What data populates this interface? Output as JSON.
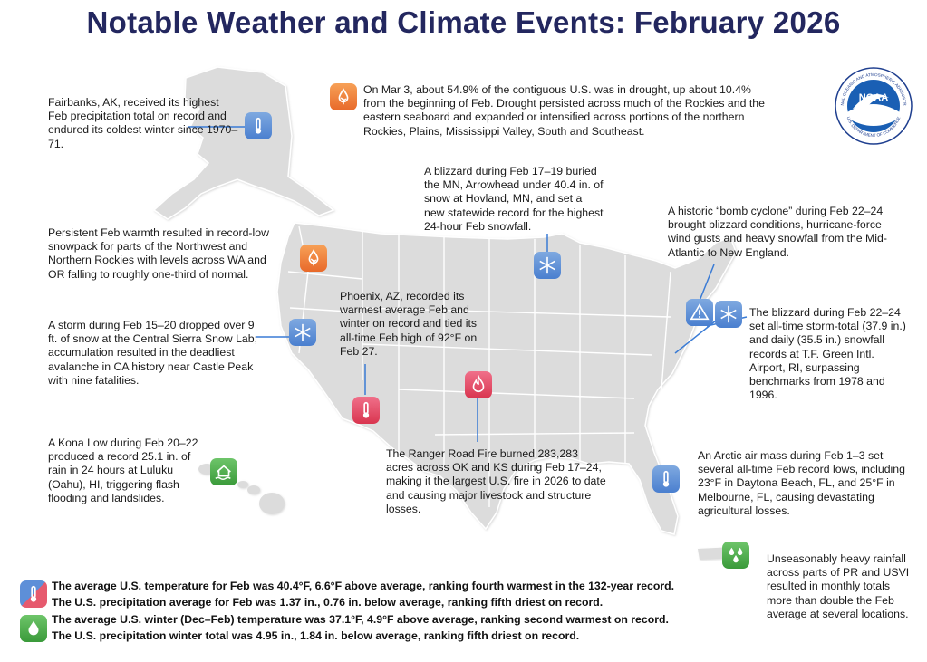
{
  "title": "Notable Weather and Climate Events: February 2026",
  "logo": {
    "text": "NOAA",
    "ring_top": "NATIONAL OCEANIC AND ATMOSPHERIC ADMINISTRATION",
    "ring_bottom": "U.S. DEPARTMENT OF COMMERCE"
  },
  "events": {
    "alaska": "Fairbanks, AK, received its highest Feb precipitation total on record and endured its coldest winter since 1970–71.",
    "drought": "On Mar 3, about 54.9% of the contiguous U.S. was in drought, up about 10.4% from the beginning of Feb. Drought persisted across much of the Rockies and the eastern seaboard and expanded or intensified across portions of the northern Rockies, Plains, Mississippi Valley, South and Southeast.",
    "blizzard_mn": "A blizzard during Feb 17–19 buried the MN, Arrowhead under 40.4 in. of snow at Hovland, MN, and set a new statewide record for the highest 24-hour Feb snowfall.",
    "bomb_cyclone": "A historic “bomb cyclone” during Feb 22–24 brought blizzard conditions, hurricane-force wind gusts and heavy snowfall from the Mid-Atlantic to New England.",
    "northwest": "Persistent Feb warmth resulted in record-low snowpack for parts of the Northwest and Northern Rockies with levels across WA and OR falling to roughly one-third of normal.",
    "phoenix": "Phoenix, AZ, recorded its warmest average Feb and winter on record and tied its all-time Feb high of 92°F on Feb 27.",
    "ri_blizzard": "The blizzard during Feb 22–24 set all-time storm-total (37.9 in.) and daily (35.5 in.) snowfall records at T.F. Green Intl. Airport, RI, surpassing benchmarks from 1978 and 1996.",
    "sierra": "A storm during Feb 15–20 dropped over 9 ft. of snow at the Central Sierra Snow Lab; accumulation resulted in the deadliest avalanche in CA history near Castle Peak with nine fatalities.",
    "hawaii": "A Kona Low during Feb 20–22 produced a record 25.1 in. of rain in 24 hours at Luluku (Oahu), HI, triggering flash flooding and landslides.",
    "fire": "The Ranger Road Fire burned 283,283 acres across OK and KS during Feb 17–24, making it the largest U.S. fire in 2026 to date and causing major livestock and structure losses.",
    "florida": "An Arctic air mass during Feb 1–3 set several all-time Feb record lows, including 23°F in Daytona Beach, FL, and 25°F in Melbourne, FL, causing devastating agricultural losses.",
    "pr": "Unseasonably heavy rainfall across parts of PR and USVI resulted in monthly totals more than double the Feb average at several locations."
  },
  "summary": {
    "feb_temp": "The average U.S. temperature for Feb was 40.4°F, 6.6°F above average, ranking fourth warmest in the 132-year record.",
    "feb_precip": "The U.S. precipitation average for Feb was 1.37 in., 0.76 in. below average, ranking fifth driest on record.",
    "winter_temp": "The average U.S. winter (Dec–Feb) temperature was 37.1°F, 4.9°F above average, ranking second warmest on record.",
    "winter_precip": "The U.S. precipitation winter total was 4.95 in., 1.84 in. below average, ranking fifth driest on record."
  },
  "colors": {
    "title": "#23275f",
    "map_fill": "#dcdcdc",
    "map_line": "#ffffff",
    "leader": "#3a7bd5"
  }
}
